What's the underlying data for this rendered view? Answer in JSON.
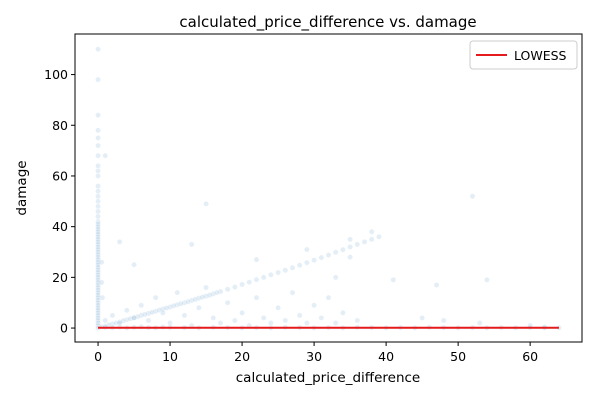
{
  "chart_data": {
    "type": "scatter",
    "title": "calculated_price_difference vs. damage",
    "xlabel": "calculated_price_difference",
    "ylabel": "damage",
    "xlim": [
      -3.2,
      67.2
    ],
    "ylim": [
      -5.5,
      116.0
    ],
    "xticks": [
      0,
      10,
      20,
      30,
      40,
      50,
      60
    ],
    "yticks": [
      0,
      20,
      40,
      60,
      80,
      100
    ],
    "grid": false,
    "legend": {
      "position": "top-right",
      "entries": [
        {
          "label": "LOWESS",
          "color": "#e41a1c",
          "kind": "line"
        }
      ]
    },
    "colors": {
      "points": "#1f77b4",
      "lowess": "#e41a1c",
      "axes": "#000000"
    },
    "point_alpha": 0.12,
    "series": [
      {
        "kind": "scatter",
        "points": [
          [
            0,
            110
          ],
          [
            0,
            98
          ],
          [
            0,
            84
          ],
          [
            0,
            78
          ],
          [
            0,
            75
          ],
          [
            0,
            72
          ],
          [
            0,
            68
          ],
          [
            0,
            64
          ],
          [
            0,
            62
          ],
          [
            0,
            60
          ],
          [
            0,
            56
          ],
          [
            0,
            54
          ],
          [
            0,
            52
          ],
          [
            0,
            50
          ],
          [
            0,
            48
          ],
          [
            0,
            46
          ],
          [
            0,
            44
          ],
          [
            0,
            42
          ],
          [
            0,
            41
          ],
          [
            0,
            40
          ],
          [
            0,
            39
          ],
          [
            0,
            38
          ],
          [
            0,
            37
          ],
          [
            0,
            36
          ],
          [
            0,
            35
          ],
          [
            0,
            34
          ],
          [
            0,
            33
          ],
          [
            0,
            32
          ],
          [
            0,
            31
          ],
          [
            0,
            30
          ],
          [
            0,
            29
          ],
          [
            0,
            28
          ],
          [
            0,
            27
          ],
          [
            0,
            26
          ],
          [
            0,
            25
          ],
          [
            0,
            24
          ],
          [
            0,
            23
          ],
          [
            0,
            22
          ],
          [
            0,
            21
          ],
          [
            0,
            20
          ],
          [
            0,
            19
          ],
          [
            0,
            18
          ],
          [
            0,
            17
          ],
          [
            0,
            16
          ],
          [
            0,
            15
          ],
          [
            0,
            14
          ],
          [
            0,
            13
          ],
          [
            0,
            12
          ],
          [
            0,
            11
          ],
          [
            0,
            10
          ],
          [
            0,
            9
          ],
          [
            0,
            8
          ],
          [
            0,
            7
          ],
          [
            0,
            6
          ],
          [
            0,
            5
          ],
          [
            0,
            4
          ],
          [
            0,
            3
          ],
          [
            0,
            2
          ],
          [
            0,
            1
          ],
          [
            0,
            0
          ],
          [
            1,
            68
          ],
          [
            0.5,
            26
          ],
          [
            0.5,
            18
          ],
          [
            0.6,
            12
          ],
          [
            1,
            0.8
          ],
          [
            2,
            1.6
          ],
          [
            3,
            2.4
          ],
          [
            4,
            3.3
          ],
          [
            5,
            4.1
          ],
          [
            6,
            5.0
          ],
          [
            7,
            5.8
          ],
          [
            8,
            6.6
          ],
          [
            9,
            7.5
          ],
          [
            10,
            8.3
          ],
          [
            11,
            9.2
          ],
          [
            12,
            10.0
          ],
          [
            13,
            10.9
          ],
          [
            14,
            11.8
          ],
          [
            15,
            12.6
          ],
          [
            16,
            13.5
          ],
          [
            17,
            14.4
          ],
          [
            18,
            15.3
          ],
          [
            19,
            16.2
          ],
          [
            20,
            17.2
          ],
          [
            21,
            18.1
          ],
          [
            22,
            19.1
          ],
          [
            23,
            20.0
          ],
          [
            24,
            21.0
          ],
          [
            25,
            21.9
          ],
          [
            26,
            22.8
          ],
          [
            27,
            23.8
          ],
          [
            28,
            24.8
          ],
          [
            29,
            25.8
          ],
          [
            30,
            26.8
          ],
          [
            31,
            27.8
          ],
          [
            32,
            28.8
          ],
          [
            33,
            29.9
          ],
          [
            34,
            30.9
          ],
          [
            35,
            32.0
          ],
          [
            36,
            33.0
          ],
          [
            37,
            34.0
          ],
          [
            38,
            35.0
          ],
          [
            39,
            36.0
          ],
          [
            1.5,
            1.2
          ],
          [
            2.5,
            2.0
          ],
          [
            3.5,
            2.9
          ],
          [
            4.5,
            3.7
          ],
          [
            5.5,
            4.5
          ],
          [
            6.5,
            5.4
          ],
          [
            7.5,
            6.2
          ],
          [
            8.5,
            7.1
          ],
          [
            9.5,
            7.9
          ],
          [
            10.5,
            8.8
          ],
          [
            11.5,
            9.6
          ],
          [
            12.5,
            10.4
          ],
          [
            13.5,
            11.3
          ],
          [
            14.5,
            12.2
          ],
          [
            15.5,
            13.0
          ],
          [
            16.5,
            14.0
          ],
          [
            1,
            3
          ],
          [
            2,
            5
          ],
          [
            3,
            2
          ],
          [
            4,
            7
          ],
          [
            5,
            4
          ],
          [
            6,
            9
          ],
          [
            7,
            3
          ],
          [
            8,
            12
          ],
          [
            9,
            6
          ],
          [
            10,
            2
          ],
          [
            11,
            14
          ],
          [
            12,
            5
          ],
          [
            13,
            1
          ],
          [
            14,
            8
          ],
          [
            15,
            16
          ],
          [
            16,
            4
          ],
          [
            17,
            2
          ],
          [
            18,
            10
          ],
          [
            19,
            3
          ],
          [
            20,
            6
          ],
          [
            21,
            1
          ],
          [
            22,
            12
          ],
          [
            23,
            4
          ],
          [
            24,
            2
          ],
          [
            25,
            8
          ],
          [
            26,
            3
          ],
          [
            27,
            14
          ],
          [
            28,
            5
          ],
          [
            29,
            2
          ],
          [
            30,
            9
          ],
          [
            31,
            4
          ],
          [
            32,
            12
          ],
          [
            33,
            2
          ],
          [
            34,
            6
          ],
          [
            35,
            35
          ],
          [
            36,
            3
          ],
          [
            38,
            38
          ],
          [
            41,
            19
          ],
          [
            45,
            4
          ],
          [
            47,
            17
          ],
          [
            52,
            52
          ],
          [
            54,
            19
          ],
          [
            15,
            49
          ],
          [
            3,
            34
          ],
          [
            5,
            25
          ],
          [
            13,
            33
          ],
          [
            22,
            27
          ],
          [
            29,
            31
          ],
          [
            33,
            20
          ],
          [
            35,
            28
          ],
          [
            48,
            3
          ],
          [
            53,
            2
          ],
          [
            60,
            1
          ],
          [
            62,
            0.5
          ],
          [
            0.5,
            0.5
          ],
          [
            1,
            0.3
          ],
          [
            2,
            0.2
          ],
          [
            3,
            0.4
          ],
          [
            4,
            0.1
          ],
          [
            5,
            0.3
          ],
          [
            6,
            0.5
          ],
          [
            7,
            0.2
          ],
          [
            8,
            0.1
          ],
          [
            9,
            0.4
          ],
          [
            10,
            0.3
          ],
          [
            12,
            0.2
          ],
          [
            14,
            0.1
          ],
          [
            16,
            0.3
          ],
          [
            18,
            0.2
          ],
          [
            20,
            0.1
          ],
          [
            22,
            0.2
          ],
          [
            24,
            0.1
          ],
          [
            26,
            0.3
          ],
          [
            28,
            0.2
          ],
          [
            30,
            0.1
          ],
          [
            32,
            0.2
          ],
          [
            34,
            0.1
          ],
          [
            36,
            0.3
          ],
          [
            38,
            0.2
          ],
          [
            40,
            0.1
          ],
          [
            42,
            0.2
          ],
          [
            44,
            0.1
          ],
          [
            46,
            0.3
          ],
          [
            48,
            0.2
          ],
          [
            50,
            0.1
          ],
          [
            52,
            0.2
          ],
          [
            54,
            0.1
          ],
          [
            56,
            0.2
          ],
          [
            58,
            0.1
          ],
          [
            60,
            0.2
          ],
          [
            62,
            0.1
          ],
          [
            64,
            0.1
          ]
        ]
      },
      {
        "name": "LOWESS",
        "kind": "line",
        "x": [
          0,
          5,
          10,
          20,
          30,
          40,
          50,
          64
        ],
        "y": [
          0.1,
          0.1,
          0.1,
          0.1,
          0.1,
          0.1,
          0.1,
          0.1
        ]
      }
    ]
  }
}
